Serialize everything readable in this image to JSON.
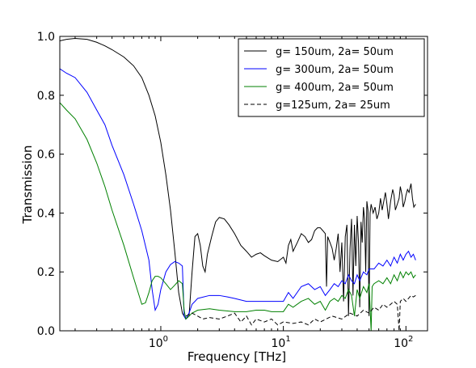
{
  "chart_data": {
    "type": "line",
    "title": "",
    "xlabel": "Frequency [THz]",
    "ylabel": "Transmission",
    "xscale": "log",
    "xlim": [
      0.15,
      150
    ],
    "ylim": [
      0.0,
      1.0
    ],
    "x_ticks": [
      {
        "value": 1,
        "base": "10",
        "exp": "0"
      },
      {
        "value": 10,
        "base": "10",
        "exp": "1"
      },
      {
        "value": 100,
        "base": "10",
        "exp": "2"
      }
    ],
    "y_ticks": [
      {
        "value": 0.0,
        "label": "0.0"
      },
      {
        "value": 0.2,
        "label": "0.2"
      },
      {
        "value": 0.4,
        "label": "0.4"
      },
      {
        "value": 0.6,
        "label": "0.6"
      },
      {
        "value": 0.8,
        "label": "0.8"
      },
      {
        "value": 1.0,
        "label": "1.0"
      }
    ],
    "grid": false,
    "legend_position": "top-right",
    "series": [
      {
        "name": "g= 150um, 2a= 50um",
        "color": "#000000",
        "dash": "solid",
        "points": [
          [
            0.15,
            0.985
          ],
          [
            0.17,
            0.99
          ],
          [
            0.2,
            0.993
          ],
          [
            0.25,
            0.99
          ],
          [
            0.3,
            0.98
          ],
          [
            0.35,
            0.968
          ],
          [
            0.4,
            0.955
          ],
          [
            0.5,
            0.93
          ],
          [
            0.6,
            0.9
          ],
          [
            0.7,
            0.86
          ],
          [
            0.8,
            0.8
          ],
          [
            0.9,
            0.73
          ],
          [
            1.0,
            0.64
          ],
          [
            1.1,
            0.53
          ],
          [
            1.2,
            0.41
          ],
          [
            1.3,
            0.27
          ],
          [
            1.4,
            0.13
          ],
          [
            1.5,
            0.06
          ],
          [
            1.6,
            0.04
          ],
          [
            1.7,
            0.05
          ],
          [
            1.8,
            0.2
          ],
          [
            1.9,
            0.32
          ],
          [
            2.0,
            0.33
          ],
          [
            2.1,
            0.29
          ],
          [
            2.2,
            0.22
          ],
          [
            2.3,
            0.2
          ],
          [
            2.4,
            0.26
          ],
          [
            2.6,
            0.32
          ],
          [
            2.8,
            0.37
          ],
          [
            3.0,
            0.385
          ],
          [
            3.3,
            0.38
          ],
          [
            3.6,
            0.36
          ],
          [
            4.0,
            0.33
          ],
          [
            4.5,
            0.29
          ],
          [
            5.0,
            0.27
          ],
          [
            5.5,
            0.25
          ],
          [
            6.0,
            0.26
          ],
          [
            6.5,
            0.265
          ],
          [
            7.0,
            0.255
          ],
          [
            8.0,
            0.24
          ],
          [
            9.0,
            0.235
          ],
          [
            10.0,
            0.25
          ],
          [
            10.5,
            0.23
          ],
          [
            11.0,
            0.29
          ],
          [
            11.5,
            0.31
          ],
          [
            12.0,
            0.27
          ],
          [
            13.0,
            0.3
          ],
          [
            14.0,
            0.33
          ],
          [
            15.0,
            0.32
          ],
          [
            16.0,
            0.3
          ],
          [
            17.0,
            0.31
          ],
          [
            18.0,
            0.34
          ],
          [
            19.0,
            0.35
          ],
          [
            20.0,
            0.35
          ],
          [
            21.0,
            0.34
          ],
          [
            22.0,
            0.33
          ],
          [
            22.5,
            0.15
          ],
          [
            23.0,
            0.32
          ],
          [
            24.0,
            0.3
          ],
          [
            25.0,
            0.28
          ],
          [
            26.0,
            0.24
          ],
          [
            27.0,
            0.28
          ],
          [
            28.0,
            0.33
          ],
          [
            29.0,
            0.2
          ],
          [
            30.0,
            0.3
          ],
          [
            31.0,
            0.1
          ],
          [
            32.0,
            0.32
          ],
          [
            33.0,
            0.36
          ],
          [
            34.0,
            0.05
          ],
          [
            35.0,
            0.28
          ],
          [
            36.0,
            0.38
          ],
          [
            37.0,
            0.12
          ],
          [
            38.0,
            0.36
          ],
          [
            39.0,
            0.22
          ],
          [
            40.0,
            0.39
          ],
          [
            41.0,
            0.3
          ],
          [
            42.0,
            0.08
          ],
          [
            43.0,
            0.37
          ],
          [
            44.0,
            0.3
          ],
          [
            45.0,
            0.42
          ],
          [
            46.0,
            0.38
          ],
          [
            47.0,
            0.2
          ],
          [
            48.0,
            0.44
          ],
          [
            49.0,
            0.41
          ],
          [
            50.0,
            0.05
          ],
          [
            51.0,
            0.4
          ],
          [
            52.0,
            0.43
          ],
          [
            54.0,
            0.4
          ],
          [
            56.0,
            0.42
          ],
          [
            58.0,
            0.38
          ],
          [
            60.0,
            0.4
          ],
          [
            62.0,
            0.45
          ],
          [
            64.0,
            0.41
          ],
          [
            66.0,
            0.44
          ],
          [
            68.0,
            0.47
          ],
          [
            70.0,
            0.43
          ],
          [
            72.0,
            0.38
          ],
          [
            75.0,
            0.44
          ],
          [
            78.0,
            0.48
          ],
          [
            80.0,
            0.46
          ],
          [
            82.0,
            0.41
          ],
          [
            85.0,
            0.43
          ],
          [
            88.0,
            0.45
          ],
          [
            90.0,
            0.49
          ],
          [
            93.0,
            0.46
          ],
          [
            95.0,
            0.42
          ],
          [
            98.0,
            0.44
          ],
          [
            100.0,
            0.46
          ],
          [
            103.0,
            0.48
          ],
          [
            106.0,
            0.47
          ],
          [
            110.0,
            0.5
          ],
          [
            113.0,
            0.45
          ],
          [
            116.0,
            0.42
          ],
          [
            120.0,
            0.43
          ]
        ]
      },
      {
        "name": "g= 300um, 2a= 50um",
        "color": "#0000ff",
        "dash": "solid",
        "points": [
          [
            0.15,
            0.89
          ],
          [
            0.17,
            0.875
          ],
          [
            0.2,
            0.86
          ],
          [
            0.25,
            0.81
          ],
          [
            0.3,
            0.75
          ],
          [
            0.35,
            0.7
          ],
          [
            0.4,
            0.63
          ],
          [
            0.5,
            0.53
          ],
          [
            0.6,
            0.43
          ],
          [
            0.7,
            0.34
          ],
          [
            0.8,
            0.24
          ],
          [
            0.85,
            0.14
          ],
          [
            0.9,
            0.07
          ],
          [
            0.95,
            0.09
          ],
          [
            1.0,
            0.14
          ],
          [
            1.1,
            0.2
          ],
          [
            1.2,
            0.225
          ],
          [
            1.3,
            0.235
          ],
          [
            1.4,
            0.23
          ],
          [
            1.5,
            0.22
          ],
          [
            1.55,
            0.05
          ],
          [
            1.6,
            0.04
          ],
          [
            1.7,
            0.06
          ],
          [
            1.8,
            0.09
          ],
          [
            1.9,
            0.1
          ],
          [
            2.0,
            0.11
          ],
          [
            2.5,
            0.12
          ],
          [
            3.0,
            0.12
          ],
          [
            3.5,
            0.115
          ],
          [
            4.0,
            0.11
          ],
          [
            5.0,
            0.1
          ],
          [
            6.0,
            0.1
          ],
          [
            7.0,
            0.1
          ],
          [
            8.0,
            0.1
          ],
          [
            10.0,
            0.1
          ],
          [
            11.0,
            0.13
          ],
          [
            12.0,
            0.11
          ],
          [
            14.0,
            0.15
          ],
          [
            16.0,
            0.16
          ],
          [
            18.0,
            0.14
          ],
          [
            20.0,
            0.15
          ],
          [
            22.0,
            0.12
          ],
          [
            24.0,
            0.14
          ],
          [
            26.0,
            0.16
          ],
          [
            28.0,
            0.15
          ],
          [
            30.0,
            0.17
          ],
          [
            32.0,
            0.16
          ],
          [
            34.0,
            0.19
          ],
          [
            36.0,
            0.17
          ],
          [
            38.0,
            0.16
          ],
          [
            40.0,
            0.19
          ],
          [
            42.0,
            0.17
          ],
          [
            45.0,
            0.2
          ],
          [
            48.0,
            0.19
          ],
          [
            50.0,
            0.21
          ],
          [
            55.0,
            0.21
          ],
          [
            60.0,
            0.23
          ],
          [
            65.0,
            0.22
          ],
          [
            70.0,
            0.24
          ],
          [
            75.0,
            0.22
          ],
          [
            80.0,
            0.25
          ],
          [
            85.0,
            0.23
          ],
          [
            90.0,
            0.26
          ],
          [
            95.0,
            0.24
          ],
          [
            100.0,
            0.26
          ],
          [
            105.0,
            0.27
          ],
          [
            110.0,
            0.25
          ],
          [
            115.0,
            0.26
          ],
          [
            120.0,
            0.24
          ]
        ]
      },
      {
        "name": "g= 400um, 2a= 50um",
        "color": "#008000",
        "dash": "solid",
        "points": [
          [
            0.15,
            0.775
          ],
          [
            0.17,
            0.75
          ],
          [
            0.2,
            0.72
          ],
          [
            0.25,
            0.65
          ],
          [
            0.3,
            0.57
          ],
          [
            0.35,
            0.49
          ],
          [
            0.4,
            0.41
          ],
          [
            0.5,
            0.29
          ],
          [
            0.6,
            0.18
          ],
          [
            0.7,
            0.09
          ],
          [
            0.75,
            0.095
          ],
          [
            0.8,
            0.13
          ],
          [
            0.85,
            0.17
          ],
          [
            0.9,
            0.185
          ],
          [
            0.95,
            0.185
          ],
          [
            1.0,
            0.18
          ],
          [
            1.1,
            0.16
          ],
          [
            1.2,
            0.14
          ],
          [
            1.3,
            0.155
          ],
          [
            1.4,
            0.17
          ],
          [
            1.5,
            0.16
          ],
          [
            1.55,
            0.07
          ],
          [
            1.6,
            0.04
          ],
          [
            1.7,
            0.05
          ],
          [
            1.8,
            0.06
          ],
          [
            2.0,
            0.07
          ],
          [
            2.5,
            0.075
          ],
          [
            3.0,
            0.07
          ],
          [
            4.0,
            0.065
          ],
          [
            5.0,
            0.065
          ],
          [
            6.0,
            0.07
          ],
          [
            7.0,
            0.07
          ],
          [
            8.0,
            0.065
          ],
          [
            10.0,
            0.065
          ],
          [
            11.0,
            0.09
          ],
          [
            12.0,
            0.08
          ],
          [
            14.0,
            0.1
          ],
          [
            16.0,
            0.11
          ],
          [
            18.0,
            0.09
          ],
          [
            20.0,
            0.1
          ],
          [
            22.0,
            0.07
          ],
          [
            24.0,
            0.1
          ],
          [
            26.0,
            0.11
          ],
          [
            28.0,
            0.1
          ],
          [
            30.0,
            0.12
          ],
          [
            32.0,
            0.11
          ],
          [
            34.0,
            0.14
          ],
          [
            36.0,
            0.12
          ],
          [
            38.0,
            0.05
          ],
          [
            40.0,
            0.14
          ],
          [
            42.0,
            0.11
          ],
          [
            45.0,
            0.15
          ],
          [
            48.0,
            0.13
          ],
          [
            50.0,
            0.16
          ],
          [
            52.0,
            0.0
          ],
          [
            53.0,
            0.15
          ],
          [
            55.0,
            0.16
          ],
          [
            60.0,
            0.17
          ],
          [
            65.0,
            0.16
          ],
          [
            70.0,
            0.18
          ],
          [
            75.0,
            0.16
          ],
          [
            80.0,
            0.19
          ],
          [
            85.0,
            0.17
          ],
          [
            90.0,
            0.2
          ],
          [
            95.0,
            0.18
          ],
          [
            100.0,
            0.2
          ],
          [
            105.0,
            0.19
          ],
          [
            110.0,
            0.2
          ],
          [
            115.0,
            0.18
          ],
          [
            120.0,
            0.19
          ]
        ]
      },
      {
        "name": "g=125um, 2a= 25um",
        "color": "#000000",
        "dash": "dashed",
        "points": [
          [
            1.6,
            0.05
          ],
          [
            1.8,
            0.06
          ],
          [
            2.0,
            0.05
          ],
          [
            2.2,
            0.04
          ],
          [
            2.5,
            0.045
          ],
          [
            3.0,
            0.04
          ],
          [
            3.5,
            0.05
          ],
          [
            4.0,
            0.06
          ],
          [
            4.5,
            0.03
          ],
          [
            5.0,
            0.05
          ],
          [
            5.5,
            0.02
          ],
          [
            6.0,
            0.04
          ],
          [
            7.0,
            0.03
          ],
          [
            8.0,
            0.04
          ],
          [
            9.0,
            0.02
          ],
          [
            10.0,
            0.03
          ],
          [
            12.0,
            0.025
          ],
          [
            14.0,
            0.03
          ],
          [
            16.0,
            0.02
          ],
          [
            18.0,
            0.04
          ],
          [
            20.0,
            0.03
          ],
          [
            25.0,
            0.05
          ],
          [
            30.0,
            0.04
          ],
          [
            35.0,
            0.06
          ],
          [
            40.0,
            0.05
          ],
          [
            45.0,
            0.07
          ],
          [
            50.0,
            0.06
          ],
          [
            55.0,
            0.08
          ],
          [
            60.0,
            0.07
          ],
          [
            65.0,
            0.09
          ],
          [
            70.0,
            0.08
          ],
          [
            75.0,
            0.09
          ],
          [
            80.0,
            0.1
          ],
          [
            85.0,
            0.09
          ],
          [
            88.0,
            0.0
          ],
          [
            90.0,
            0.1
          ],
          [
            95.0,
            0.11
          ],
          [
            100.0,
            0.1
          ],
          [
            105.0,
            0.11
          ],
          [
            110.0,
            0.12
          ],
          [
            115.0,
            0.115
          ],
          [
            120.0,
            0.12
          ]
        ]
      }
    ]
  }
}
